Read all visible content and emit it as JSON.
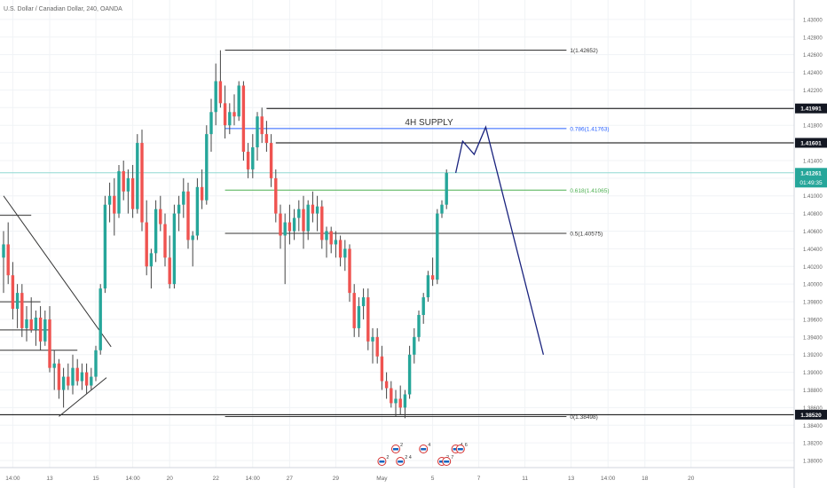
{
  "header": {
    "symbol_title": "U.S. Dollar / Canadian Dollar, 240, OANDA"
  },
  "colors": {
    "up": "#26a69a",
    "down": "#ef5350",
    "wick": "#444444",
    "grid": "#f0f3f6",
    "fib_line": "#333333",
    "fib_786": "#2962ff",
    "fib_618": "#4caf50",
    "current_price_line": "#8fd9d2",
    "current_price_bg": "#26a69a",
    "projection": "#1a237e",
    "axis_text": "#666666",
    "label_bg_dark": "#131722"
  },
  "chart_data": {
    "type": "candlestick",
    "symbol": "U.S. Dollar / Canadian Dollar, 240, OANDA",
    "y_axis": {
      "range": [
        1.3792,
        1.4322
      ],
      "ticks": [
        "1.43000",
        "1.42800",
        "1.42600",
        "1.42400",
        "1.42200",
        "1.42000",
        "1.41800",
        "1.41600",
        "1.41400",
        "1.41200",
        "1.41000",
        "1.40800",
        "1.40600",
        "1.40400",
        "1.40200",
        "1.40000",
        "1.39800",
        "1.39600",
        "1.39400",
        "1.39200",
        "1.39000",
        "1.38800",
        "1.38600",
        "1.38400",
        "1.38200",
        "1.38000"
      ]
    },
    "x_axis": {
      "ticks": [
        {
          "label": "14:00",
          "i": 2
        },
        {
          "label": "13",
          "i": 10
        },
        {
          "label": "15",
          "i": 20
        },
        {
          "label": "14:00",
          "i": 28
        },
        {
          "label": "20",
          "i": 36
        },
        {
          "label": "22",
          "i": 46
        },
        {
          "label": "14:00",
          "i": 54
        },
        {
          "label": "27",
          "i": 62
        },
        {
          "label": "29",
          "i": 72
        },
        {
          "label": "May",
          "i": 82
        },
        {
          "label": "5",
          "i": 93
        },
        {
          "label": "7",
          "i": 103
        },
        {
          "label": "11",
          "i": 113
        },
        {
          "label": "13",
          "i": 123
        },
        {
          "label": "14:00",
          "i": 131
        },
        {
          "label": "18",
          "i": 139
        },
        {
          "label": "20",
          "i": 149
        }
      ]
    },
    "candles": [
      {
        "o": 1.403,
        "h": 1.406,
        "l": 1.399,
        "c": 1.4045
      },
      {
        "o": 1.4045,
        "h": 1.407,
        "l": 1.4,
        "c": 1.401
      },
      {
        "o": 1.401,
        "h": 1.4025,
        "l": 1.396,
        "c": 1.3972
      },
      {
        "o": 1.3972,
        "h": 1.4,
        "l": 1.395,
        "c": 1.399
      },
      {
        "o": 1.399,
        "h": 1.4,
        "l": 1.394,
        "c": 1.395
      },
      {
        "o": 1.395,
        "h": 1.3975,
        "l": 1.3935,
        "c": 1.396
      },
      {
        "o": 1.396,
        "h": 1.3985,
        "l": 1.3945,
        "c": 1.3948
      },
      {
        "o": 1.3948,
        "h": 1.397,
        "l": 1.393,
        "c": 1.3962
      },
      {
        "o": 1.3962,
        "h": 1.3975,
        "l": 1.3925,
        "c": 1.3935
      },
      {
        "o": 1.3935,
        "h": 1.397,
        "l": 1.393,
        "c": 1.396
      },
      {
        "o": 1.396,
        "h": 1.3975,
        "l": 1.39,
        "c": 1.3905
      },
      {
        "o": 1.3905,
        "h": 1.3925,
        "l": 1.388,
        "c": 1.391
      },
      {
        "o": 1.391,
        "h": 1.3915,
        "l": 1.387,
        "c": 1.388
      },
      {
        "o": 1.388,
        "h": 1.3905,
        "l": 1.386,
        "c": 1.3895
      },
      {
        "o": 1.3895,
        "h": 1.391,
        "l": 1.388,
        "c": 1.3885
      },
      {
        "o": 1.3885,
        "h": 1.392,
        "l": 1.3875,
        "c": 1.3905
      },
      {
        "o": 1.3905,
        "h": 1.3915,
        "l": 1.3885,
        "c": 1.389
      },
      {
        "o": 1.389,
        "h": 1.391,
        "l": 1.388,
        "c": 1.39
      },
      {
        "o": 1.39,
        "h": 1.391,
        "l": 1.3875,
        "c": 1.3885
      },
      {
        "o": 1.3885,
        "h": 1.3905,
        "l": 1.388,
        "c": 1.3895
      },
      {
        "o": 1.3895,
        "h": 1.393,
        "l": 1.389,
        "c": 1.3925
      },
      {
        "o": 1.3925,
        "h": 1.4,
        "l": 1.392,
        "c": 1.3995
      },
      {
        "o": 1.3995,
        "h": 1.41,
        "l": 1.399,
        "c": 1.409
      },
      {
        "o": 1.409,
        "h": 1.4115,
        "l": 1.407,
        "c": 1.41
      },
      {
        "o": 1.41,
        "h": 1.412,
        "l": 1.4055,
        "c": 1.408
      },
      {
        "o": 1.408,
        "h": 1.4135,
        "l": 1.4075,
        "c": 1.4128
      },
      {
        "o": 1.4128,
        "h": 1.414,
        "l": 1.4095,
        "c": 1.4105
      },
      {
        "o": 1.4105,
        "h": 1.413,
        "l": 1.408,
        "c": 1.412
      },
      {
        "o": 1.412,
        "h": 1.4135,
        "l": 1.4075,
        "c": 1.4085
      },
      {
        "o": 1.4085,
        "h": 1.417,
        "l": 1.408,
        "c": 1.416
      },
      {
        "o": 1.416,
        "h": 1.4175,
        "l": 1.406,
        "c": 1.407
      },
      {
        "o": 1.407,
        "h": 1.4095,
        "l": 1.401,
        "c": 1.402
      },
      {
        "o": 1.402,
        "h": 1.404,
        "l": 1.3995,
        "c": 1.4035
      },
      {
        "o": 1.4035,
        "h": 1.4095,
        "l": 1.4025,
        "c": 1.4085
      },
      {
        "o": 1.4085,
        "h": 1.41,
        "l": 1.406,
        "c": 1.4068
      },
      {
        "o": 1.4068,
        "h": 1.408,
        "l": 1.402,
        "c": 1.403
      },
      {
        "o": 1.403,
        "h": 1.4055,
        "l": 1.3995,
        "c": 1.4
      },
      {
        "o": 1.4,
        "h": 1.409,
        "l": 1.3995,
        "c": 1.408
      },
      {
        "o": 1.408,
        "h": 1.41,
        "l": 1.406,
        "c": 1.409
      },
      {
        "o": 1.409,
        "h": 1.412,
        "l": 1.4075,
        "c": 1.4105
      },
      {
        "o": 1.4105,
        "h": 1.4115,
        "l": 1.404,
        "c": 1.405
      },
      {
        "o": 1.405,
        "h": 1.406,
        "l": 1.402,
        "c": 1.4055
      },
      {
        "o": 1.4055,
        "h": 1.412,
        "l": 1.405,
        "c": 1.411
      },
      {
        "o": 1.411,
        "h": 1.413,
        "l": 1.4085,
        "c": 1.4095
      },
      {
        "o": 1.4095,
        "h": 1.418,
        "l": 1.409,
        "c": 1.417
      },
      {
        "o": 1.417,
        "h": 1.421,
        "l": 1.415,
        "c": 1.4195
      },
      {
        "o": 1.4195,
        "h": 1.425,
        "l": 1.418,
        "c": 1.423
      },
      {
        "o": 1.423,
        "h": 1.4265,
        "l": 1.42,
        "c": 1.4205
      },
      {
        "o": 1.4205,
        "h": 1.4225,
        "l": 1.4165,
        "c": 1.418
      },
      {
        "o": 1.418,
        "h": 1.4205,
        "l": 1.417,
        "c": 1.4195
      },
      {
        "o": 1.4195,
        "h": 1.4215,
        "l": 1.418,
        "c": 1.419
      },
      {
        "o": 1.419,
        "h": 1.423,
        "l": 1.4185,
        "c": 1.4225
      },
      {
        "o": 1.4225,
        "h": 1.423,
        "l": 1.414,
        "c": 1.415
      },
      {
        "o": 1.415,
        "h": 1.416,
        "l": 1.412,
        "c": 1.413
      },
      {
        "o": 1.413,
        "h": 1.417,
        "l": 1.412,
        "c": 1.4155
      },
      {
        "o": 1.4155,
        "h": 1.4195,
        "l": 1.414,
        "c": 1.419
      },
      {
        "o": 1.419,
        "h": 1.42,
        "l": 1.416,
        "c": 1.417
      },
      {
        "o": 1.417,
        "h": 1.4185,
        "l": 1.415,
        "c": 1.416
      },
      {
        "o": 1.416,
        "h": 1.417,
        "l": 1.411,
        "c": 1.412
      },
      {
        "o": 1.412,
        "h": 1.413,
        "l": 1.407,
        "c": 1.408
      },
      {
        "o": 1.408,
        "h": 1.409,
        "l": 1.404,
        "c": 1.4055
      },
      {
        "o": 1.4055,
        "h": 1.408,
        "l": 1.4,
        "c": 1.407
      },
      {
        "o": 1.407,
        "h": 1.409,
        "l": 1.4045,
        "c": 1.406
      },
      {
        "o": 1.406,
        "h": 1.4085,
        "l": 1.405,
        "c": 1.4075
      },
      {
        "o": 1.4075,
        "h": 1.4095,
        "l": 1.406,
        "c": 1.4085
      },
      {
        "o": 1.4085,
        "h": 1.41,
        "l": 1.404,
        "c": 1.406
      },
      {
        "o": 1.406,
        "h": 1.4095,
        "l": 1.405,
        "c": 1.409
      },
      {
        "o": 1.409,
        "h": 1.4105,
        "l": 1.407,
        "c": 1.408
      },
      {
        "o": 1.408,
        "h": 1.41,
        "l": 1.406,
        "c": 1.4088
      },
      {
        "o": 1.4088,
        "h": 1.4095,
        "l": 1.404,
        "c": 1.405
      },
      {
        "o": 1.405,
        "h": 1.4065,
        "l": 1.403,
        "c": 1.406
      },
      {
        "o": 1.406,
        "h": 1.4065,
        "l": 1.4035,
        "c": 1.4045
      },
      {
        "o": 1.4045,
        "h": 1.406,
        "l": 1.403,
        "c": 1.405
      },
      {
        "o": 1.405,
        "h": 1.4055,
        "l": 1.402,
        "c": 1.403
      },
      {
        "o": 1.403,
        "h": 1.405,
        "l": 1.4015,
        "c": 1.404
      },
      {
        "o": 1.404,
        "h": 1.4045,
        "l": 1.398,
        "c": 1.399
      },
      {
        "o": 1.399,
        "h": 1.4,
        "l": 1.394,
        "c": 1.395
      },
      {
        "o": 1.395,
        "h": 1.3985,
        "l": 1.394,
        "c": 1.3975
      },
      {
        "o": 1.3975,
        "h": 1.3995,
        "l": 1.396,
        "c": 1.3985
      },
      {
        "o": 1.3985,
        "h": 1.3995,
        "l": 1.3925,
        "c": 1.3935
      },
      {
        "o": 1.3935,
        "h": 1.395,
        "l": 1.391,
        "c": 1.394
      },
      {
        "o": 1.394,
        "h": 1.395,
        "l": 1.391,
        "c": 1.3918
      },
      {
        "o": 1.3918,
        "h": 1.393,
        "l": 1.388,
        "c": 1.389
      },
      {
        "o": 1.389,
        "h": 1.39,
        "l": 1.387,
        "c": 1.3882
      },
      {
        "o": 1.3882,
        "h": 1.389,
        "l": 1.386,
        "c": 1.3865
      },
      {
        "o": 1.3865,
        "h": 1.388,
        "l": 1.385,
        "c": 1.387
      },
      {
        "o": 1.387,
        "h": 1.3885,
        "l": 1.3852,
        "c": 1.386
      },
      {
        "o": 1.386,
        "h": 1.388,
        "l": 1.3848,
        "c": 1.3875
      },
      {
        "o": 1.3875,
        "h": 1.393,
        "l": 1.387,
        "c": 1.392
      },
      {
        "o": 1.392,
        "h": 1.395,
        "l": 1.391,
        "c": 1.394
      },
      {
        "o": 1.394,
        "h": 1.397,
        "l": 1.3935,
        "c": 1.3965
      },
      {
        "o": 1.3965,
        "h": 1.399,
        "l": 1.3955,
        "c": 1.3985
      },
      {
        "o": 1.3985,
        "h": 1.4015,
        "l": 1.398,
        "c": 1.401
      },
      {
        "o": 1.401,
        "h": 1.403,
        "l": 1.3998,
        "c": 1.4005
      },
      {
        "o": 1.4005,
        "h": 1.4085,
        "l": 1.4,
        "c": 1.408
      },
      {
        "o": 1.408,
        "h": 1.4095,
        "l": 1.4075,
        "c": 1.409
      },
      {
        "o": 1.409,
        "h": 1.413,
        "l": 1.4085,
        "c": 1.4126
      }
    ],
    "fib_levels": [
      {
        "label": "1(1.42652)",
        "value": 1.42652
      },
      {
        "label": "0.786(1.41763)",
        "value": 1.41763
      },
      {
        "label": "0.618(1.41065)",
        "value": 1.41065
      },
      {
        "label": "0.5(1.40575)",
        "value": 1.40575
      },
      {
        "label": "0(1.38498)",
        "value": 1.38498
      }
    ],
    "horizontal_levels": [
      {
        "label": "1.41991",
        "value": 1.41991
      },
      {
        "label": "1.41601",
        "value": 1.41601
      },
      {
        "label": "1.38520",
        "value": 1.3852
      }
    ],
    "current_price": {
      "label": "1.41261",
      "value": 1.41261,
      "countdown": "01:49:35"
    },
    "annotation": {
      "text": "4H SUPPLY"
    },
    "projection_path": [
      {
        "i": 98,
        "p": 1.4126
      },
      {
        "i": 99.5,
        "p": 1.4162
      },
      {
        "i": 102,
        "p": 1.4147
      },
      {
        "i": 104.5,
        "p": 1.4178
      },
      {
        "i": 117,
        "p": 1.392
      }
    ],
    "trendlines": [
      {
        "from": {
          "i": 0,
          "p": 1.41
        },
        "to": {
          "i": 21,
          "p": 1.3935
        }
      },
      {
        "from": {
          "i": 12,
          "p": 1.385
        },
        "to": {
          "i": 20,
          "p": 1.39
        }
      }
    ],
    "events": [
      {
        "i": 82,
        "count": "2"
      },
      {
        "i": 85,
        "count": "2"
      },
      {
        "i": 86,
        "count": "2 4"
      },
      {
        "i": 91,
        "count": "4"
      },
      {
        "i": 95,
        "count": "2"
      },
      {
        "i": 98,
        "count": "4"
      },
      {
        "i": 96,
        "count": "7"
      },
      {
        "i": 99,
        "count": "6"
      }
    ]
  }
}
